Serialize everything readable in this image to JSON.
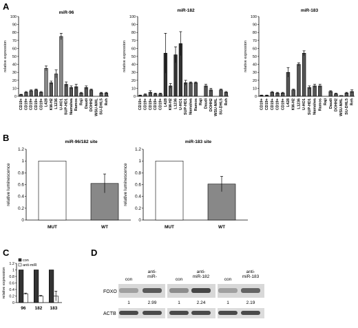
{
  "panel_labels": [
    "A",
    "B",
    "C",
    "D"
  ],
  "chart_data": [
    {
      "id": "a1",
      "type": "bar",
      "title": "miR-96",
      "ylabel": "relative expression",
      "xlabel": "",
      "ylim": [
        0,
        100
      ],
      "yticks": [
        0,
        10,
        20,
        30,
        40,
        50,
        60,
        70,
        80,
        90,
        100
      ],
      "grid": false,
      "categories": [
        "CD19+",
        "CD19+",
        "CD19+",
        "CD19+",
        "CD19+",
        "L428",
        "KM-H2",
        "L1236",
        "U-HO1",
        "SUP-HD1",
        "Namalwa",
        "Ramos",
        "Raji",
        "Daudi",
        "DOHH2",
        "WSU-NHL",
        "SU-DHL5",
        "Reh"
      ],
      "values": [
        2,
        5,
        7,
        8,
        5,
        35,
        17,
        28,
        75,
        15,
        11,
        12,
        4,
        11,
        8,
        0,
        4,
        4
      ],
      "errors": [
        0.5,
        1,
        1,
        1,
        1,
        3,
        2,
        5,
        4,
        3,
        2,
        3,
        1,
        2,
        1,
        0,
        1,
        1
      ],
      "fill": [
        "#555555",
        "#555555",
        "#555555",
        "#555555",
        "#555555",
        "#888888",
        "#555555",
        "#888888",
        "#888888",
        "#555555",
        "#555555",
        "#555555",
        "#555555",
        "#555555",
        "#555555",
        "#555555",
        "#555555",
        "#555555"
      ]
    },
    {
      "id": "a2",
      "type": "bar",
      "title": "miR-182",
      "ylabel": "relative expression",
      "xlabel": "",
      "ylim": [
        0,
        100
      ],
      "yticks": [
        0,
        10,
        20,
        30,
        40,
        50,
        60,
        70,
        80,
        90,
        100
      ],
      "grid": false,
      "categories": [
        "CD19+",
        "CD19+",
        "CD19+",
        "CD19+",
        "CD19+",
        "L428",
        "KM-H2",
        "L1236",
        "U-HO1",
        "SUP-HD1",
        "Namalwa",
        "Ramos",
        "Raji",
        "Daudi",
        "DOHH2",
        "WSU-NHL",
        "SU-DHL5",
        "Reh"
      ],
      "values": [
        1,
        2,
        5,
        3,
        3,
        54,
        13,
        52,
        66,
        17,
        17,
        17,
        0,
        13,
        8,
        0,
        8,
        5
      ],
      "errors": [
        0.5,
        1,
        2,
        1,
        1,
        25,
        3,
        10,
        15,
        3,
        1,
        1,
        0,
        2,
        2,
        0,
        1,
        1
      ],
      "fill": [
        "#555555",
        "#555555",
        "#555555",
        "#555555",
        "#555555",
        "#333333",
        "#555555",
        "#333333",
        "#333333",
        "#555555",
        "#555555",
        "#555555",
        "#555555",
        "#555555",
        "#555555",
        "#555555",
        "#555555",
        "#555555"
      ]
    },
    {
      "id": "a3",
      "type": "bar",
      "title": "miR-183",
      "ylabel": "relative expression",
      "xlabel": "",
      "ylim": [
        0,
        100
      ],
      "yticks": [
        0,
        10,
        20,
        30,
        40,
        50,
        60,
        70,
        80,
        90,
        100
      ],
      "grid": false,
      "categories": [
        "CD19+",
        "CD19+",
        "CD19+",
        "CD19+",
        "CD19+",
        "L428",
        "KM-H2",
        "L1236",
        "U-HO1",
        "SUP-HD1",
        "Namalwa",
        "Ramos",
        "Raji",
        "Daudi",
        "DOHH2",
        "WSU-NHL",
        "SU-DHL5",
        "Reh"
      ],
      "values": [
        1,
        1,
        5,
        4,
        4,
        30,
        8,
        40,
        54,
        11,
        13,
        13,
        0,
        6,
        3,
        1,
        4,
        6
      ],
      "errors": [
        0.5,
        0.5,
        1,
        1,
        1,
        6,
        1,
        2,
        3,
        2,
        2,
        2,
        0,
        1,
        1,
        0,
        1,
        2
      ],
      "fill": [
        "#555555",
        "#555555",
        "#555555",
        "#555555",
        "#555555",
        "#555555",
        "#555555",
        "#555555",
        "#555555",
        "#555555",
        "#555555",
        "#555555",
        "#555555",
        "#555555",
        "#555555",
        "#555555",
        "#555555",
        "#555555"
      ]
    },
    {
      "id": "b1",
      "type": "bar",
      "title": "miR-96/182 site",
      "ylabel": "relative luminescence",
      "xlabel": "",
      "ylim": [
        0,
        1.2
      ],
      "yticks": [
        0,
        0.2,
        0.4,
        0.6,
        0.8,
        1,
        1.2
      ],
      "grid": false,
      "categories": [
        "MUT",
        "WT"
      ],
      "values": [
        1.0,
        0.62
      ],
      "errors": [
        0,
        0.16
      ],
      "fill": [
        "#ffffff",
        "#888888"
      ]
    },
    {
      "id": "b2",
      "type": "bar",
      "title": "miR-183 site",
      "ylabel": "relative luminescence",
      "xlabel": "",
      "ylim": [
        0,
        1.2
      ],
      "yticks": [
        0,
        0.2,
        0.4,
        0.6,
        0.8,
        1,
        1.2
      ],
      "grid": false,
      "categories": [
        "MUT",
        "WT"
      ],
      "values": [
        1.0,
        0.61
      ],
      "errors": [
        0,
        0.13
      ],
      "fill": [
        "#ffffff",
        "#888888"
      ]
    },
    {
      "id": "c",
      "type": "bar",
      "title": "",
      "ylabel": "relative expression",
      "xlabel": "",
      "ylim": [
        0,
        1.2
      ],
      "yticks": [
        0,
        0.2,
        0.4,
        0.6,
        0.8,
        1,
        1.2
      ],
      "grid": false,
      "legend_position": "top-left",
      "categories": [
        "96",
        "182",
        "183"
      ],
      "series": [
        {
          "name": "con",
          "values": [
            1,
            1,
            1
          ],
          "errors": [
            0,
            0,
            0
          ],
          "color": "#333333"
        },
        {
          "name": "anti-miR",
          "values": [
            0.27,
            0.2,
            0.2
          ],
          "errors": [
            0.02,
            0.02,
            0.15
          ],
          "color": "#ffffff"
        }
      ]
    }
  ],
  "blot": {
    "lane_headers": [
      [
        "con"
      ],
      [
        "anti-",
        "miR-"
      ],
      [
        "con"
      ],
      [
        "anti-",
        "miR-182"
      ],
      [
        "con"
      ],
      [
        "anti-",
        "miR-183"
      ]
    ],
    "rows": [
      "FOXO",
      "ACTB"
    ],
    "quant": [
      "1",
      "2.99",
      "1",
      "2.24",
      "1",
      "2.19"
    ]
  }
}
